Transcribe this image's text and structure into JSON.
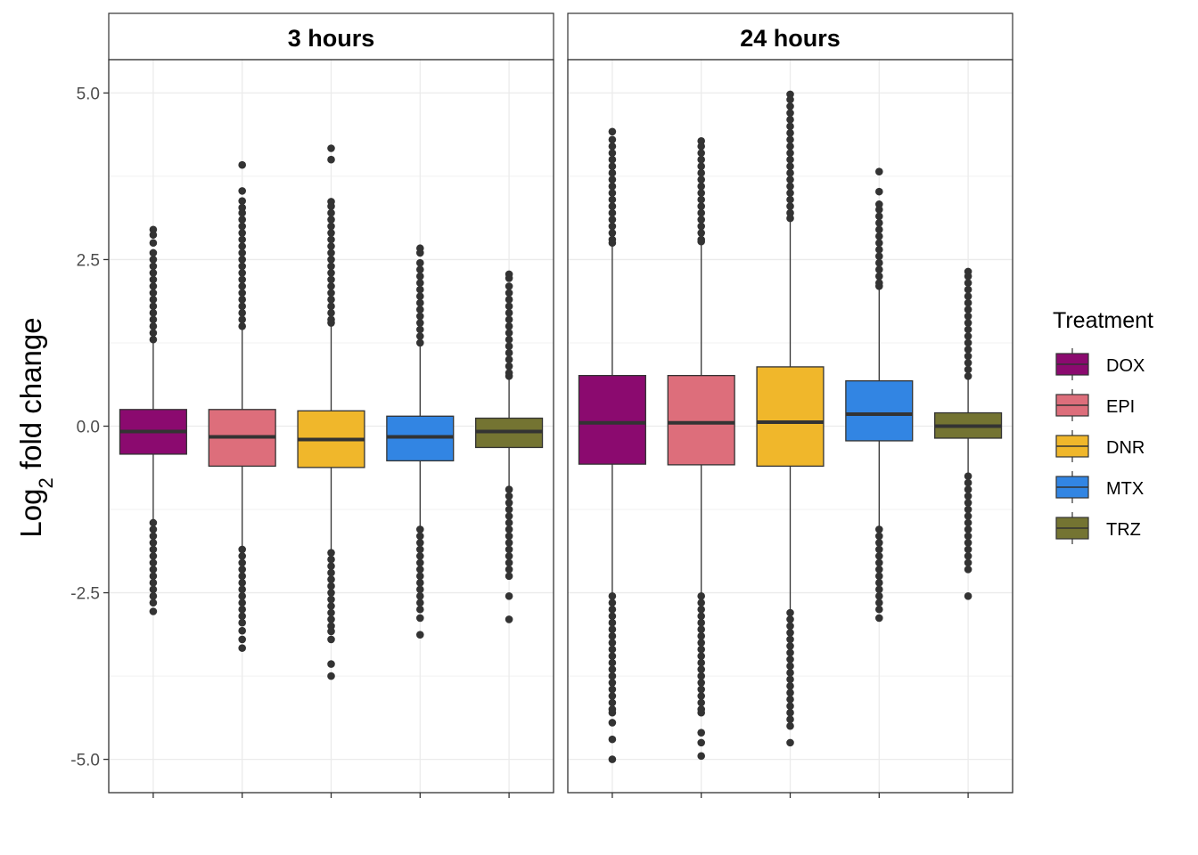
{
  "chart_data": {
    "type": "box",
    "ylabel_base": "Log",
    "ylabel_sub": "2",
    "ylabel_rest": " fold change",
    "xlabel": "",
    "ylim": [
      -5.5,
      5.5
    ],
    "yticks": [
      5.0,
      2.5,
      0.0,
      -2.5,
      -5.0
    ],
    "ytick_labels": [
      "5.0",
      "2.5",
      "0.0",
      "-2.5",
      "-5.0"
    ],
    "grid": true,
    "legend": {
      "title": "Treatment",
      "position": "right",
      "entries": [
        {
          "name": "DOX",
          "color": "#8B0A6F"
        },
        {
          "name": "EPI",
          "color": "#DD6E7B"
        },
        {
          "name": "DNR",
          "color": "#F0B72B"
        },
        {
          "name": "MTX",
          "color": "#3285E3"
        },
        {
          "name": "TRZ",
          "color": "#747432"
        }
      ]
    },
    "facets": [
      {
        "title": "3 hours",
        "boxes": [
          {
            "treatment": "DOX",
            "q1": -0.42,
            "median": -0.08,
            "q3": 0.25,
            "whisker_low": -1.4,
            "whisker_high": 1.25,
            "outliers_high": [
              2.95,
              2.87,
              2.75,
              2.6,
              2.5,
              2.4,
              2.3,
              2.2,
              2.1,
              2.0,
              1.9,
              1.8,
              1.7,
              1.6,
              1.5,
              1.4,
              1.3
            ],
            "outliers_low": [
              -1.45,
              -1.55,
              -1.65,
              -1.75,
              -1.85,
              -1.95,
              -2.05,
              -2.15,
              -2.25,
              -2.35,
              -2.45,
              -2.55,
              -2.65,
              -2.78
            ]
          },
          {
            "treatment": "EPI",
            "q1": -0.6,
            "median": -0.16,
            "q3": 0.25,
            "whisker_low": -1.8,
            "whisker_high": 1.45,
            "outliers_high": [
              3.92,
              3.53,
              3.38,
              3.28,
              3.2,
              3.1,
              3.0,
              2.9,
              2.8,
              2.7,
              2.6,
              2.5,
              2.4,
              2.3,
              2.2,
              2.1,
              2.0,
              1.9,
              1.8,
              1.7,
              1.6,
              1.5
            ],
            "outliers_low": [
              -1.85,
              -1.95,
              -2.05,
              -2.15,
              -2.25,
              -2.35,
              -2.45,
              -2.55,
              -2.65,
              -2.75,
              -2.85,
              -2.95,
              -3.07,
              -3.2,
              -3.33
            ]
          },
          {
            "treatment": "DNR",
            "q1": -0.62,
            "median": -0.2,
            "q3": 0.23,
            "whisker_low": -1.85,
            "whisker_high": 1.5,
            "outliers_high": [
              4.17,
              4.0,
              3.37,
              3.3,
              3.2,
              3.1,
              3.0,
              2.9,
              2.8,
              2.7,
              2.6,
              2.5,
              2.4,
              2.3,
              2.2,
              2.1,
              2.0,
              1.9,
              1.8,
              1.7,
              1.6,
              1.55
            ],
            "outliers_low": [
              -1.9,
              -2.0,
              -2.1,
              -2.2,
              -2.3,
              -2.4,
              -2.5,
              -2.6,
              -2.7,
              -2.8,
              -2.9,
              -3.0,
              -3.08,
              -3.2,
              -3.57,
              -3.75
            ]
          },
          {
            "treatment": "MTX",
            "q1": -0.52,
            "median": -0.16,
            "q3": 0.15,
            "whisker_low": -1.5,
            "whisker_high": 1.2,
            "outliers_high": [
              2.67,
              2.6,
              2.45,
              2.35,
              2.25,
              2.15,
              2.05,
              1.95,
              1.85,
              1.75,
              1.65,
              1.55,
              1.45,
              1.35,
              1.25
            ],
            "outliers_low": [
              -1.55,
              -1.65,
              -1.75,
              -1.85,
              -1.95,
              -2.05,
              -2.15,
              -2.25,
              -2.35,
              -2.45,
              -2.55,
              -2.65,
              -2.75,
              -2.88,
              -3.13
            ]
          },
          {
            "treatment": "TRZ",
            "q1": -0.32,
            "median": -0.08,
            "q3": 0.12,
            "whisker_low": -0.9,
            "whisker_high": 0.7,
            "outliers_high": [
              2.28,
              2.22,
              2.1,
              2.0,
              1.9,
              1.8,
              1.7,
              1.6,
              1.5,
              1.4,
              1.3,
              1.2,
              1.1,
              1.0,
              0.9,
              0.8,
              0.75
            ],
            "outliers_low": [
              -0.95,
              -1.05,
              -1.15,
              -1.25,
              -1.35,
              -1.45,
              -1.55,
              -1.65,
              -1.75,
              -1.85,
              -1.95,
              -2.05,
              -2.15,
              -2.25,
              -2.55,
              -2.9
            ]
          }
        ]
      },
      {
        "title": "24 hours",
        "boxes": [
          {
            "treatment": "DOX",
            "q1": -0.57,
            "median": 0.05,
            "q3": 0.76,
            "whisker_low": -2.5,
            "whisker_high": 2.7,
            "outliers_high": [
              4.42,
              4.3,
              4.2,
              4.1,
              4.0,
              3.9,
              3.8,
              3.7,
              3.6,
              3.5,
              3.4,
              3.3,
              3.2,
              3.1,
              3.0,
              2.9,
              2.8,
              2.75
            ],
            "outliers_low": [
              -2.55,
              -2.65,
              -2.75,
              -2.85,
              -2.95,
              -3.05,
              -3.15,
              -3.25,
              -3.35,
              -3.45,
              -3.55,
              -3.65,
              -3.75,
              -3.85,
              -3.95,
              -4.05,
              -4.15,
              -4.25,
              -4.3,
              -4.45,
              -4.7,
              -5.0
            ]
          },
          {
            "treatment": "EPI",
            "q1": -0.58,
            "median": 0.05,
            "q3": 0.76,
            "whisker_low": -2.5,
            "whisker_high": 2.72,
            "outliers_high": [
              4.28,
              4.2,
              4.1,
              4.0,
              3.9,
              3.8,
              3.7,
              3.6,
              3.5,
              3.4,
              3.3,
              3.2,
              3.1,
              3.0,
              2.9,
              2.8,
              2.77
            ],
            "outliers_low": [
              -2.55,
              -2.65,
              -2.75,
              -2.85,
              -2.95,
              -3.05,
              -3.15,
              -3.25,
              -3.35,
              -3.45,
              -3.55,
              -3.65,
              -3.75,
              -3.85,
              -3.95,
              -4.05,
              -4.15,
              -4.25,
              -4.3,
              -4.6,
              -4.75,
              -4.95
            ]
          },
          {
            "treatment": "DNR",
            "q1": -0.6,
            "median": 0.06,
            "q3": 0.89,
            "whisker_low": -2.75,
            "whisker_high": 3.08,
            "outliers_high": [
              4.98,
              4.9,
              4.8,
              4.7,
              4.6,
              4.5,
              4.4,
              4.3,
              4.2,
              4.1,
              4.0,
              3.9,
              3.8,
              3.7,
              3.6,
              3.5,
              3.4,
              3.3,
              3.2,
              3.12
            ],
            "outliers_low": [
              -2.8,
              -2.9,
              -3.0,
              -3.1,
              -3.2,
              -3.3,
              -3.4,
              -3.5,
              -3.6,
              -3.7,
              -3.8,
              -3.9,
              -4.0,
              -4.1,
              -4.2,
              -4.3,
              -4.4,
              -4.5,
              -4.75
            ]
          },
          {
            "treatment": "MTX",
            "q1": -0.22,
            "median": 0.18,
            "q3": 0.68,
            "whisker_low": -1.5,
            "whisker_high": 2.05,
            "outliers_high": [
              3.82,
              3.52,
              3.33,
              3.25,
              3.15,
              3.05,
              2.95,
              2.85,
              2.75,
              2.65,
              2.55,
              2.45,
              2.35,
              2.25,
              2.15,
              2.1
            ],
            "outliers_low": [
              -1.55,
              -1.65,
              -1.75,
              -1.85,
              -1.95,
              -2.05,
              -2.15,
              -2.25,
              -2.35,
              -2.45,
              -2.55,
              -2.65,
              -2.75,
              -2.88
            ]
          },
          {
            "treatment": "TRZ",
            "q1": -0.18,
            "median": 0.0,
            "q3": 0.2,
            "whisker_low": -0.7,
            "whisker_high": 0.7,
            "outliers_high": [
              2.32,
              2.25,
              2.15,
              2.05,
              1.95,
              1.85,
              1.75,
              1.65,
              1.55,
              1.45,
              1.35,
              1.25,
              1.15,
              1.05,
              0.95,
              0.85,
              0.75
            ],
            "outliers_low": [
              -0.75,
              -0.85,
              -0.95,
              -1.05,
              -1.15,
              -1.25,
              -1.35,
              -1.45,
              -1.55,
              -1.65,
              -1.75,
              -1.85,
              -1.95,
              -2.05,
              -2.15,
              -2.55
            ]
          }
        ]
      }
    ]
  }
}
